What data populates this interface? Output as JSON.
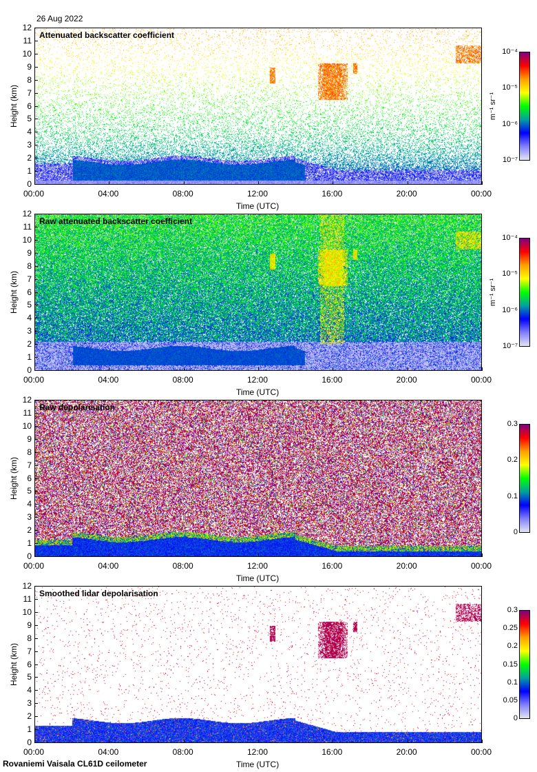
{
  "date": "26 Aug 2022",
  "footer": "Rovaniemi Vaisala CL61D ceilometer",
  "colors": {
    "stops": [
      "#e4e4f0",
      "#8080ff",
      "#0000ff",
      "#00a0a0",
      "#00ff00",
      "#ffff00",
      "#ffa000",
      "#ff0000",
      "#800080"
    ]
  },
  "chart_data": [
    {
      "type": "heatmap",
      "title": "Attenuated backscatter coefficient",
      "xlabel": "Time (UTC)",
      "ylabel": "Height (km)",
      "xlim": [
        0,
        24
      ],
      "ylim": [
        0,
        12
      ],
      "xticks": [
        "00:00",
        "04:00",
        "08:00",
        "12:00",
        "16:00",
        "20:00",
        "00:00"
      ],
      "yticks": [
        "0",
        "1",
        "2",
        "3",
        "4",
        "5",
        "6",
        "7",
        "8",
        "9",
        "10",
        "11",
        "12"
      ],
      "colorbar": {
        "unit": "m⁻¹ sr⁻¹",
        "ticks": [
          "10⁻⁴",
          "10⁻⁵",
          "10⁻⁶",
          "10⁻⁷"
        ],
        "scale": "log",
        "range": [
          1e-07,
          0.0001
        ]
      }
    },
    {
      "type": "heatmap",
      "title": "Raw attenuated backscatter coefficient",
      "xlabel": "Time (UTC)",
      "ylabel": "Height (km)",
      "xlim": [
        0,
        24
      ],
      "ylim": [
        0,
        12
      ],
      "xticks": [
        "00:00",
        "04:00",
        "08:00",
        "12:00",
        "16:00",
        "20:00",
        "00:00"
      ],
      "yticks": [
        "0",
        "1",
        "2",
        "3",
        "4",
        "5",
        "6",
        "7",
        "8",
        "9",
        "10",
        "11",
        "12"
      ],
      "colorbar": {
        "unit": "m⁻¹ sr⁻¹",
        "ticks": [
          "10⁻⁴",
          "10⁻⁵",
          "10⁻⁶",
          "10⁻⁷"
        ],
        "scale": "log",
        "range": [
          1e-07,
          0.0001
        ]
      }
    },
    {
      "type": "heatmap",
      "title": "Raw depolarisation",
      "xlabel": "Time (UTC)",
      "ylabel": "Height (km)",
      "xlim": [
        0,
        24
      ],
      "ylim": [
        0,
        12
      ],
      "xticks": [
        "00:00",
        "04:00",
        "08:00",
        "12:00",
        "16:00",
        "20:00",
        "00:00"
      ],
      "yticks": [
        "0",
        "1",
        "2",
        "3",
        "4",
        "5",
        "6",
        "7",
        "8",
        "9",
        "10",
        "11",
        "12"
      ],
      "colorbar": {
        "unit": "",
        "ticks": [
          "0.3",
          "0.2",
          "0.1",
          "0"
        ],
        "scale": "linear",
        "range": [
          0,
          0.3
        ]
      }
    },
    {
      "type": "heatmap",
      "title": "Smoothed lidar depolarisation",
      "xlabel": "Time (UTC)",
      "ylabel": "Height (km)",
      "xlim": [
        0,
        24
      ],
      "ylim": [
        0,
        12
      ],
      "xticks": [
        "00:00",
        "04:00",
        "08:00",
        "12:00",
        "16:00",
        "20:00",
        "00:00"
      ],
      "yticks": [
        "0",
        "1",
        "2",
        "3",
        "4",
        "5",
        "6",
        "7",
        "8",
        "9",
        "10",
        "11",
        "12"
      ],
      "colorbar": {
        "unit": "",
        "ticks": [
          "0.3",
          "0.25",
          "0.2",
          "0.15",
          "0.1",
          "0.05",
          "0"
        ],
        "scale": "linear",
        "range": [
          0,
          0.3
        ]
      }
    }
  ]
}
